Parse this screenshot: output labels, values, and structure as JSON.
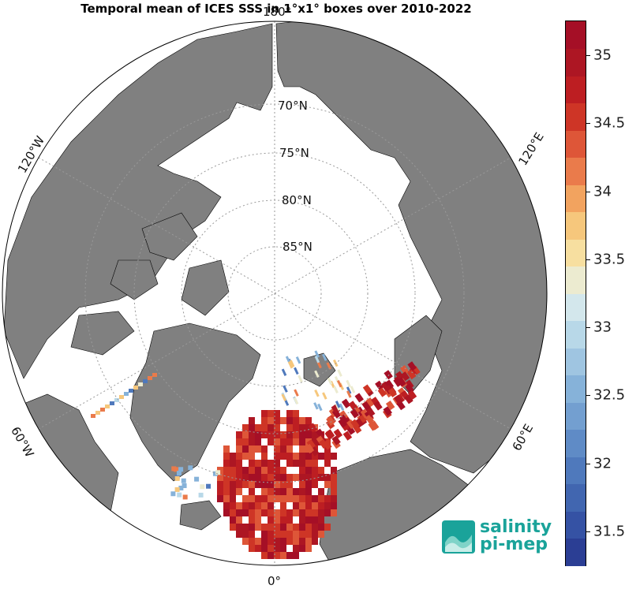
{
  "title": "Temporal mean of ICES SSS in 1°x1° boxes over 2010-2022",
  "map": {
    "projection": "north-polar-stereographic",
    "ocean_color": "#ffffff",
    "land_color": "#808080",
    "longitude_labels": [
      {
        "text": "180°",
        "lon": 180
      },
      {
        "text": "120°E",
        "lon": 120
      },
      {
        "text": "60°E",
        "lon": 60
      },
      {
        "text": "0°",
        "lon": 0
      },
      {
        "text": "60°W",
        "lon": -60
      },
      {
        "text": "120°W",
        "lon": -120
      }
    ],
    "latitude_labels": [
      {
        "text": "70°N",
        "lat": 70
      },
      {
        "text": "75°N",
        "lat": 75
      },
      {
        "text": "80°N",
        "lat": 80
      },
      {
        "text": "85°N",
        "lat": 85
      }
    ]
  },
  "colorbar": {
    "min": 31.25,
    "max": 35.25,
    "colors": [
      "#2b3e94",
      "#3552a4",
      "#4166b0",
      "#4f79bc",
      "#5f8bc6",
      "#739fd0",
      "#86b2d9",
      "#9fc5e1",
      "#b8d8e8",
      "#d3e7ec",
      "#ecebd0",
      "#f7dfa0",
      "#f6c77c",
      "#f2a35f",
      "#ea7b4b",
      "#de5638",
      "#ce3526",
      "#bd1e22",
      "#ad1623",
      "#a50f26"
    ],
    "tick_labels": [
      "31.5",
      "32",
      "32.5",
      "33",
      "33.5",
      "34",
      "34.5",
      "35"
    ]
  },
  "logo": {
    "line1": "salinity",
    "line2": "pi-mep"
  }
}
